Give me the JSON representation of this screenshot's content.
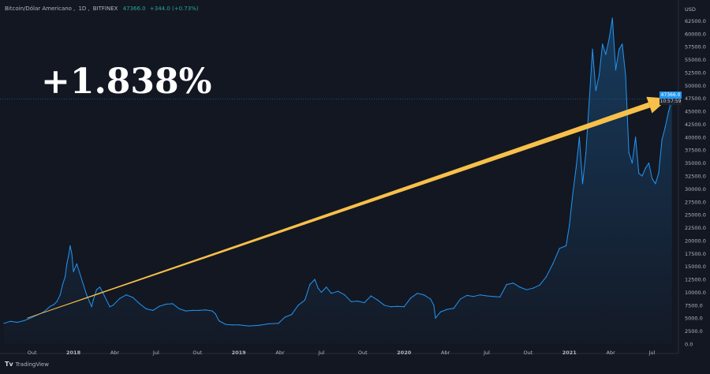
{
  "header": {
    "symbol": "Bitcoin/Dólar Americano",
    "interval": "1D",
    "exchange": "BITFINEX",
    "price": "47366.0",
    "change": "+344.0 (+0.73%)"
  },
  "overlay_text": "+1.838%",
  "brand": {
    "name": "TradingView",
    "logo_icon": "tradingview-logo-icon"
  },
  "price_badge": {
    "value": "47366.0",
    "countdown": "10:57:59"
  },
  "colors": {
    "background": "#131722",
    "line": "#2196f3",
    "arrow": "#f7c04a",
    "text": "#b2b5be"
  },
  "chart_data": {
    "type": "area",
    "title": "",
    "currency": "USD",
    "ylim": [
      0,
      65000
    ],
    "grid": false,
    "y_ticks": [
      0,
      2500,
      5000,
      7500,
      10000,
      12500,
      15000,
      17500,
      20000,
      22500,
      25000,
      27500,
      30000,
      32500,
      35000,
      37500,
      40000,
      42500,
      45000,
      47500,
      50000,
      52500,
      55000,
      57500,
      60000,
      62500
    ],
    "y_tick_labels": [
      "0.0",
      "2500.0",
      "5000.0",
      "7500.0",
      "10000.0",
      "12500.0",
      "15000.0",
      "17500.0",
      "20000.0",
      "22500.0",
      "25000.0",
      "27500.0",
      "30000.0",
      "32500.0",
      "35000.0",
      "37500.0",
      "40000.0",
      "42500.0",
      "45000.0",
      "47500.0",
      "50000.0",
      "52500.0",
      "55000.0",
      "57500.0",
      "60000.0",
      "62500.0"
    ],
    "x_tick_labels": [
      "Out",
      "2018",
      "Abr",
      "Jul",
      "Out",
      "2019",
      "Abr",
      "Jul",
      "Out",
      "2020",
      "Abr",
      "Jul",
      "Out",
      "2021",
      "Abr",
      "Jul"
    ],
    "x_tick_positions": [
      2017.75,
      2018.0,
      2018.25,
      2018.5,
      2018.75,
      2019.0,
      2019.25,
      2019.5,
      2019.75,
      2020.0,
      2020.25,
      2020.5,
      2020.75,
      2021.0,
      2021.25,
      2021.5
    ],
    "xlim": [
      2017.575,
      2021.65
    ],
    "series": [
      {
        "x": [
          2017.58,
          2017.62,
          2017.66,
          2017.7,
          2017.74,
          2017.78,
          2017.82,
          2017.86,
          2017.88,
          2017.9,
          2017.92,
          2017.935,
          2017.95,
          2017.96,
          2017.97,
          2017.98,
          2017.99,
          2018.0,
          2018.02,
          2018.04,
          2018.06,
          2018.08,
          2018.1,
          2018.11,
          2018.12,
          2018.14,
          2018.16,
          2018.18,
          2018.2,
          2018.22,
          2018.24,
          2018.28,
          2018.32,
          2018.36,
          2018.4,
          2018.44,
          2018.48,
          2018.52,
          2018.56,
          2018.6,
          2018.64,
          2018.68,
          2018.72,
          2018.76,
          2018.8,
          2018.84,
          2018.86,
          2018.88,
          2018.92,
          2018.96,
          2019.0,
          2019.06,
          2019.12,
          2019.18,
          2019.24,
          2019.28,
          2019.32,
          2019.36,
          2019.4,
          2019.43,
          2019.46,
          2019.48,
          2019.5,
          2019.53,
          2019.56,
          2019.6,
          2019.64,
          2019.68,
          2019.72,
          2019.76,
          2019.8,
          2019.84,
          2019.88,
          2019.92,
          2019.96,
          2020.0,
          2020.04,
          2020.08,
          2020.12,
          2020.16,
          2020.18,
          2020.19,
          2020.22,
          2020.26,
          2020.3,
          2020.34,
          2020.38,
          2020.42,
          2020.46,
          2020.5,
          2020.54,
          2020.58,
          2020.62,
          2020.66,
          2020.7,
          2020.74,
          2020.78,
          2020.82,
          2020.86,
          2020.9,
          2020.94,
          2020.98,
          2021.0,
          2021.02,
          2021.04,
          2021.06,
          2021.08,
          2021.1,
          2021.12,
          2021.14,
          2021.16,
          2021.18,
          2021.2,
          2021.22,
          2021.24,
          2021.26,
          2021.28,
          2021.3,
          2021.32,
          2021.34,
          2021.36,
          2021.38,
          2021.4,
          2021.42,
          2021.44,
          2021.46,
          2021.48,
          2021.5,
          2021.52,
          2021.54,
          2021.56,
          2021.58,
          2021.6,
          2021.62
        ],
        "y": [
          4000,
          4400,
          4200,
          4500,
          5000,
          5600,
          6200,
          7300,
          7600,
          8200,
          9500,
          11500,
          13000,
          15500,
          17000,
          19000,
          17500,
          14000,
          15500,
          13500,
          11500,
          9500,
          8000,
          7200,
          8500,
          10500,
          11000,
          9800,
          8500,
          7200,
          7500,
          8800,
          9500,
          9000,
          7800,
          6800,
          6500,
          7300,
          7700,
          7800,
          6800,
          6400,
          6500,
          6500,
          6600,
          6400,
          5800,
          4500,
          3800,
          3700,
          3700,
          3500,
          3600,
          3900,
          4000,
          5200,
          5700,
          7500,
          8500,
          11500,
          12500,
          10800,
          10000,
          11000,
          9800,
          10200,
          9500,
          8200,
          8300,
          8000,
          9300,
          8500,
          7500,
          7200,
          7300,
          7200,
          8900,
          9800,
          9500,
          8700,
          7500,
          5000,
          6200,
          6700,
          6900,
          8700,
          9400,
          9200,
          9500,
          9300,
          9200,
          9100,
          11500,
          11800,
          11000,
          10500,
          10800,
          11400,
          13000,
          15500,
          18500,
          19000,
          23000,
          29000,
          34000,
          40000,
          31000,
          37000,
          47000,
          57000,
          49000,
          52000,
          58000,
          56000,
          59000,
          63000,
          53000,
          57000,
          58000,
          52000,
          37000,
          35000,
          40000,
          33000,
          32500,
          34000,
          35000,
          32000,
          31000,
          33000,
          39500,
          42000,
          45000,
          47366
        ]
      }
    ],
    "arrow": {
      "from": [
        2017.72,
        5000
      ],
      "to": [
        2021.6,
        47500
      ]
    },
    "last_price": 47366
  }
}
